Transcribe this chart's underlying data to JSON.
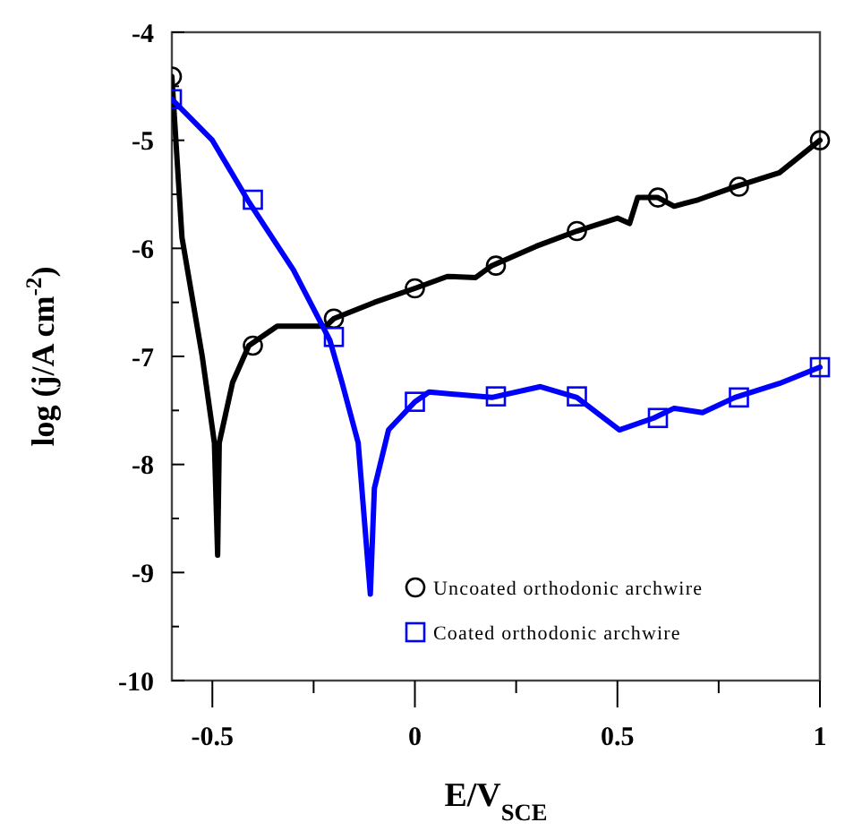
{
  "chart_data": {
    "type": "line",
    "xlabel": "E/V$_{SCE}$",
    "ylabel": "log (j/A cm$^{-2}$)",
    "xlim": [
      -0.6,
      1.0
    ],
    "ylim": [
      -10,
      -4
    ],
    "xticks": [
      -0.5,
      {
        "value": -0.25,
        "label": null
      },
      0,
      {
        "value": 0.25,
        "label": null
      },
      0.5,
      {
        "value": 0.75,
        "label": null
      },
      1
    ],
    "yticks": [
      -10,
      {
        "value": -9.5,
        "label": null
      },
      -9,
      {
        "value": -8.5,
        "label": null
      },
      -8,
      {
        "value": -7.5,
        "label": null
      },
      -7,
      {
        "value": -6.5,
        "label": null
      },
      -6,
      {
        "value": -5.5,
        "label": null
      },
      -5,
      {
        "value": -4.5,
        "label": null
      },
      -4
    ],
    "grid": false,
    "legend": "bottom right",
    "series": [
      {
        "color": "#000000",
        "marker": "none",
        "x": [
          -0.6,
          -0.575,
          -0.525,
          -0.495,
          -0.487,
          -0.483,
          -0.45,
          -0.41,
          -0.34,
          -0.22,
          -0.2,
          -0.1,
          0,
          0.08,
          0.15,
          0.19,
          0.3,
          0.4,
          0.5,
          0.53,
          0.55,
          0.6,
          0.64,
          0.7,
          0.79,
          0.9,
          1.0
        ],
        "values": [
          -4.41,
          -5.9,
          -7.0,
          -7.8,
          -8.84,
          -7.8,
          -7.24,
          -6.9,
          -6.72,
          -6.72,
          -6.65,
          -6.5,
          -6.37,
          -6.26,
          -6.27,
          -6.16,
          -5.98,
          -5.84,
          -5.72,
          -5.77,
          -5.53,
          -5.53,
          -5.61,
          -5.55,
          -5.43,
          -5.3,
          -5.0
        ]
      },
      {
        "color": "#0000ff",
        "marker": "none",
        "x": [
          -0.6,
          -0.5,
          -0.41,
          -0.3,
          -0.21,
          -0.18,
          -0.14,
          -0.11,
          -0.1,
          -0.065,
          0,
          0.035,
          0.19,
          0.31,
          0.4,
          0.505,
          0.59,
          0.64,
          0.71,
          0.79,
          0.9,
          1.0
        ],
        "values": [
          -4.62,
          -5.0,
          -5.57,
          -6.2,
          -6.85,
          -7.24,
          -7.8,
          -9.2,
          -8.22,
          -7.68,
          -7.42,
          -7.33,
          -7.38,
          -7.28,
          -7.38,
          -7.68,
          -7.57,
          -7.48,
          -7.52,
          -7.38,
          -7.25,
          -7.1
        ]
      },
      {
        "type": "scatter",
        "name": "Uncoated orthodonic archwire",
        "color": "#000000",
        "marker": "circle",
        "x": [
          -0.6,
          -0.4,
          -0.2,
          0,
          0.2,
          0.4,
          0.6,
          0.8,
          1.0
        ],
        "values": [
          -4.41,
          -6.9,
          -6.65,
          -6.37,
          -6.16,
          -5.84,
          -5.53,
          -5.43,
          -5.0
        ]
      },
      {
        "type": "scatter",
        "name": "Coated orthodonic archwire",
        "color": "#0000ff",
        "marker": "square",
        "x": [
          -0.6,
          -0.4,
          -0.2,
          0,
          0.2,
          0.4,
          0.6,
          0.8,
          1.0
        ],
        "values": [
          -4.62,
          -5.55,
          -6.82,
          -7.42,
          -7.37,
          -7.37,
          -7.57,
          -7.38,
          -7.1
        ]
      }
    ]
  }
}
